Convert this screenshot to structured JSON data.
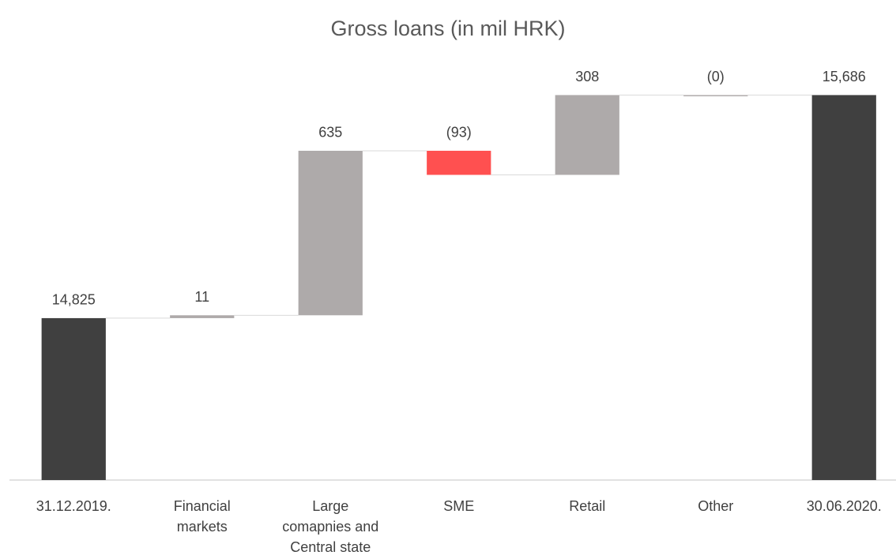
{
  "chart_data": {
    "type": "waterfall",
    "title": "Gross loans (in mil HRK)",
    "categories": [
      "31.12.2019.",
      "Financial markets",
      "Large comapnies and Central state",
      "SME",
      "Retail",
      "Other",
      "30.06.2020."
    ],
    "values": [
      14825,
      11,
      635,
      -93,
      308,
      0,
      15686
    ],
    "value_labels": [
      "14,825",
      "11",
      "635",
      "(93)",
      "308",
      "(0)",
      "15,686"
    ],
    "measure": [
      "total",
      "relative",
      "relative",
      "relative",
      "relative",
      "relative",
      "total"
    ],
    "colors": {
      "total": "#404040",
      "increase": "#aeaaaa",
      "decrease": "#ff5050"
    },
    "ylim": [
      14200,
      15800
    ]
  }
}
